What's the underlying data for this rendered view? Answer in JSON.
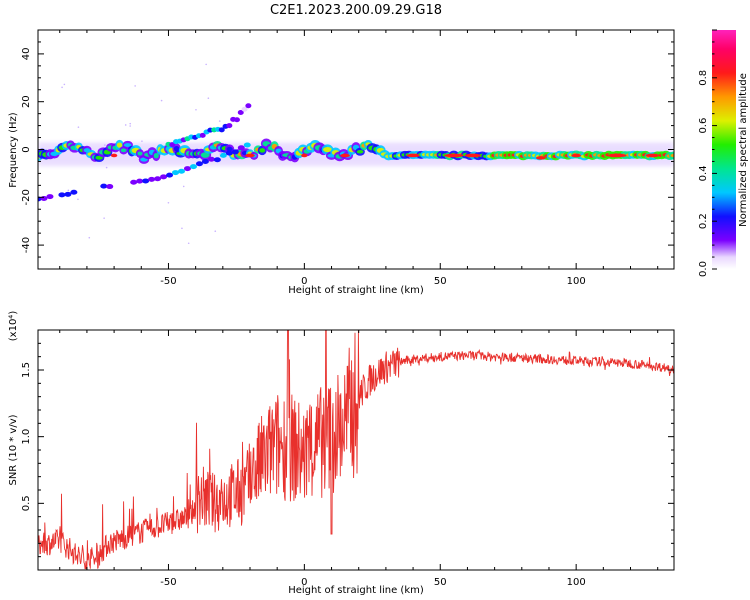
{
  "title": "C2E1.2023.200.09.29.G18",
  "colors": {
    "snr_line": "#e8302c",
    "spectro_bg": "#ffffff"
  },
  "chart_data": [
    {
      "type": "heatmap",
      "name": "spectrogram",
      "xlabel": "Height of straight line (km)",
      "ylabel": "Frequency (Hz)",
      "xlim": [
        -98,
        136
      ],
      "ylim": [
        -50,
        50
      ],
      "x_ticks": [
        -50,
        0,
        50,
        100
      ],
      "y_ticks": [
        -40,
        -20,
        0,
        20,
        40
      ],
      "description_of_features": {
        "main_band": {
          "x_range": [
            -98,
            136
          ],
          "freq_start": -3,
          "freq_end": -2
        },
        "lower_branch": [
          [
            -98,
            -21
          ],
          [
            -80,
            -17
          ],
          [
            -70,
            -15
          ],
          [
            -60,
            -13
          ],
          [
            -50,
            -11
          ],
          [
            -40,
            -7
          ],
          [
            -30,
            -3
          ],
          [
            -20,
            2
          ]
        ],
        "upper_branch": [
          [
            -50,
            2
          ],
          [
            -40,
            5
          ],
          [
            -30,
            9
          ],
          [
            -25,
            13
          ],
          [
            -20,
            20
          ]
        ]
      },
      "colorbar": {
        "label": "Normalized spectral amplitude",
        "range": [
          0,
          1
        ],
        "ticks": [
          "0.0",
          "0.2",
          "0.4",
          "0.6",
          "0.8"
        ]
      }
    },
    {
      "type": "line",
      "name": "snr",
      "xlabel": "Height of straight line (km)",
      "ylabel": "SNR (10 * v/v)",
      "scale_label": "(x10⁴)",
      "xlim": [
        -98,
        136
      ],
      "ylim": [
        0,
        1.8
      ],
      "x_ticks": [
        -50,
        0,
        50,
        100
      ],
      "y_ticks": [
        "0.5",
        "1.0",
        "1.5"
      ],
      "envelope_points": [
        [
          -98,
          0.18
        ],
        [
          -90,
          0.22
        ],
        [
          -82,
          0.08
        ],
        [
          -78,
          0.05
        ],
        [
          -72,
          0.2
        ],
        [
          -65,
          0.25
        ],
        [
          -58,
          0.3
        ],
        [
          -50,
          0.35
        ],
        [
          -42,
          0.4
        ],
        [
          -38,
          0.55
        ],
        [
          -33,
          0.5
        ],
        [
          -28,
          0.55
        ],
        [
          -22,
          0.6
        ],
        [
          -16,
          0.8
        ],
        [
          -12,
          0.9
        ],
        [
          -8,
          0.95
        ],
        [
          -3,
          0.9
        ],
        [
          0,
          0.85
        ],
        [
          5,
          0.95
        ],
        [
          10,
          1.0
        ],
        [
          15,
          1.1
        ],
        [
          20,
          1.3
        ],
        [
          25,
          1.45
        ],
        [
          30,
          1.52
        ],
        [
          35,
          1.56
        ],
        [
          40,
          1.58
        ],
        [
          50,
          1.6
        ],
        [
          60,
          1.61
        ],
        [
          70,
          1.6
        ],
        [
          80,
          1.59
        ],
        [
          90,
          1.58
        ],
        [
          100,
          1.57
        ],
        [
          110,
          1.56
        ],
        [
          120,
          1.55
        ],
        [
          128,
          1.53
        ],
        [
          136,
          1.51
        ]
      ]
    }
  ]
}
